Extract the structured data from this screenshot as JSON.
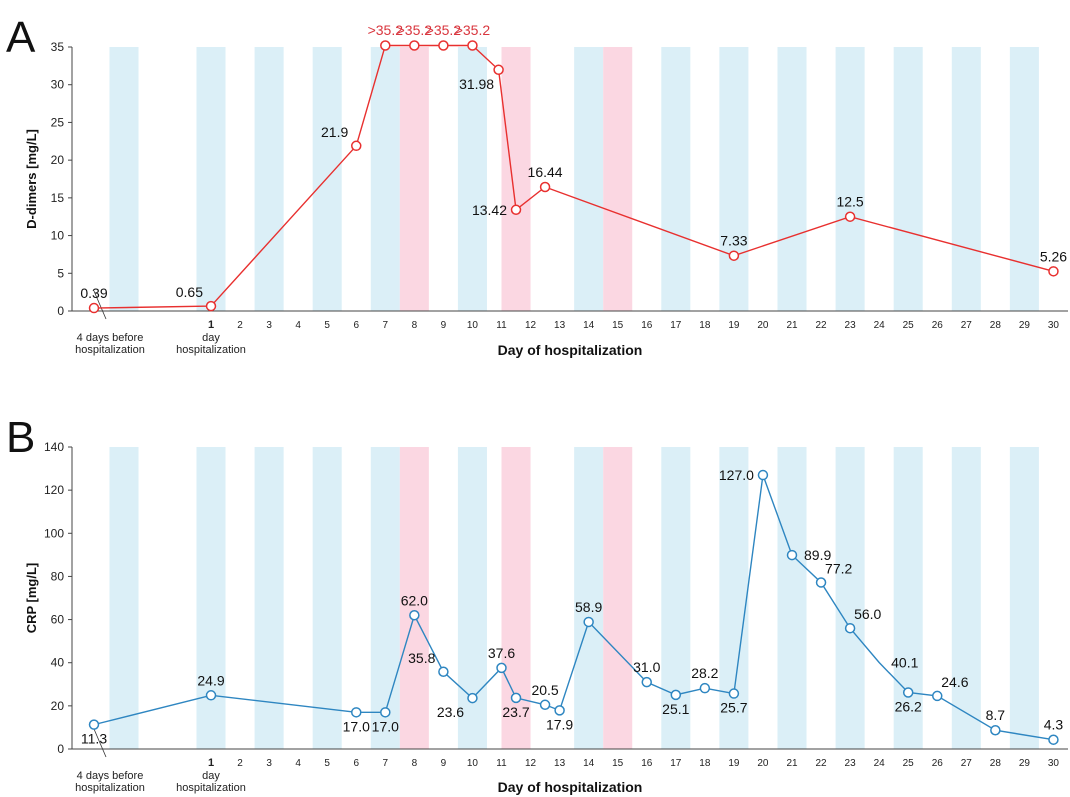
{
  "chart_data": [
    {
      "type": "line",
      "panel_label": "A",
      "ylabel": "D-dimers [mg/L]",
      "xlabel": "Day of hospitalization",
      "ylim": [
        0,
        35
      ],
      "yticks": [
        "0",
        "5",
        "10",
        "15",
        "20",
        "25",
        "30",
        "35"
      ],
      "xlim": [
        -4,
        30
      ],
      "xticks": [
        "1",
        "2",
        "3",
        "4",
        "5",
        "6",
        "7",
        "8",
        "9",
        "10",
        "11",
        "12",
        "13",
        "14",
        "15",
        "16",
        "17",
        "18",
        "19",
        "20",
        "21",
        "22",
        "23",
        "24",
        "25",
        "26",
        "27",
        "28",
        "29",
        "30"
      ],
      "pre_label": "4 days before\nhospitalization",
      "day1_label": "day\nhospitalization",
      "color": "#e8302f",
      "series": [
        {
          "values": [
            {
              "x": -4,
              "y": 0.39,
              "label": "0.39",
              "pos": "above"
            },
            {
              "x": 1,
              "y": 0.65,
              "label": "0.65",
              "pos": "aboveleft"
            },
            {
              "x": 6,
              "y": 21.9,
              "label": "21.9",
              "pos": "aboveleft"
            },
            {
              "x": 7,
              "y": 35.2,
              "label": ">35.2",
              "pos": "top",
              "red": true
            },
            {
              "x": 8,
              "y": 35.2,
              "label": ">35.2",
              "pos": "top",
              "red": true
            },
            {
              "x": 9,
              "y": 35.2,
              "label": ">35.2",
              "pos": "top",
              "red": true
            },
            {
              "x": 10,
              "y": 35.2,
              "label": ">35.2",
              "pos": "top",
              "red": true
            },
            {
              "x": 10.9,
              "y": 31.98,
              "label": "31.98",
              "pos": "belowleft"
            },
            {
              "x": 11.5,
              "y": 13.42,
              "label": "13.42",
              "pos": "left"
            },
            {
              "x": 12.5,
              "y": 16.44,
              "label": "16.44",
              "pos": "above"
            },
            {
              "x": 19,
              "y": 7.33,
              "label": "7.33",
              "pos": "above"
            },
            {
              "x": 23,
              "y": 12.5,
              "label": "12.5",
              "pos": "above"
            },
            {
              "x": 30,
              "y": 5.26,
              "label": "5.26",
              "pos": "above"
            }
          ]
        }
      ]
    },
    {
      "type": "line",
      "panel_label": "B",
      "ylabel": "CRP [mg/L]",
      "xlabel": "Day of hospitalization",
      "ylim": [
        0,
        140
      ],
      "yticks": [
        "0",
        "20",
        "40",
        "60",
        "80",
        "100",
        "120",
        "140"
      ],
      "xlim": [
        -4,
        30
      ],
      "xticks": [
        "1",
        "2",
        "3",
        "4",
        "5",
        "6",
        "7",
        "8",
        "9",
        "10",
        "11",
        "12",
        "13",
        "14",
        "15",
        "16",
        "17",
        "18",
        "19",
        "20",
        "21",
        "22",
        "23",
        "24",
        "25",
        "26",
        "27",
        "28",
        "29",
        "30"
      ],
      "pre_label": "4 days before\nhospitalization",
      "day1_label": "day\nhospitalization",
      "color": "#2e86c1",
      "series": [
        {
          "values": [
            {
              "x": -4,
              "y": 11.3,
              "label": "11.3",
              "pos": "below"
            },
            {
              "x": 1,
              "y": 24.9,
              "label": "24.9",
              "pos": "above"
            },
            {
              "x": 6,
              "y": 17.0,
              "label": "17.0",
              "pos": "below"
            },
            {
              "x": 7,
              "y": 17.0,
              "label": "17.0",
              "pos": "below"
            },
            {
              "x": 8,
              "y": 62.0,
              "label": "62.0",
              "pos": "above"
            },
            {
              "x": 9,
              "y": 35.8,
              "label": "35.8",
              "pos": "aboveleft"
            },
            {
              "x": 10,
              "y": 23.6,
              "label": "23.6",
              "pos": "belowleft"
            },
            {
              "x": 11,
              "y": 37.6,
              "label": "37.6",
              "pos": "above"
            },
            {
              "x": 11.5,
              "y": 23.7,
              "label": "23.7",
              "pos": "below"
            },
            {
              "x": 12.5,
              "y": 20.5,
              "label": "20.5",
              "pos": "above"
            },
            {
              "x": 13,
              "y": 17.9,
              "label": "17.9",
              "pos": "below"
            },
            {
              "x": 14,
              "y": 58.9,
              "label": "58.9",
              "pos": "above"
            },
            {
              "x": 16,
              "y": 31.0,
              "label": "31.0",
              "pos": "above"
            },
            {
              "x": 17,
              "y": 25.1,
              "label": "25.1",
              "pos": "below"
            },
            {
              "x": 18,
              "y": 28.2,
              "label": "28.2",
              "pos": "above"
            },
            {
              "x": 19,
              "y": 25.7,
              "label": "25.7",
              "pos": "below"
            },
            {
              "x": 20,
              "y": 127.0,
              "label": "127.0",
              "pos": "left"
            },
            {
              "x": 21,
              "y": 89.9,
              "label": "89.9",
              "pos": "right"
            },
            {
              "x": 22,
              "y": 77.2,
              "label": "77.2",
              "pos": "aboveright"
            },
            {
              "x": 23,
              "y": 56.0,
              "label": "56.0",
              "pos": "aboveright"
            },
            {
              "x": 24,
              "y": 40.1,
              "label": "40.1",
              "pos": "right",
              "nomarker": true
            },
            {
              "x": 25,
              "y": 26.2,
              "label": "26.2",
              "pos": "below"
            },
            {
              "x": 26,
              "y": 24.6,
              "label": "24.6",
              "pos": "aboveright"
            },
            {
              "x": 28,
              "y": 8.7,
              "label": "8.7",
              "pos": "above"
            },
            {
              "x": 30,
              "y": 4.3,
              "label": "4.3",
              "pos": "above"
            }
          ]
        }
      ]
    }
  ]
}
